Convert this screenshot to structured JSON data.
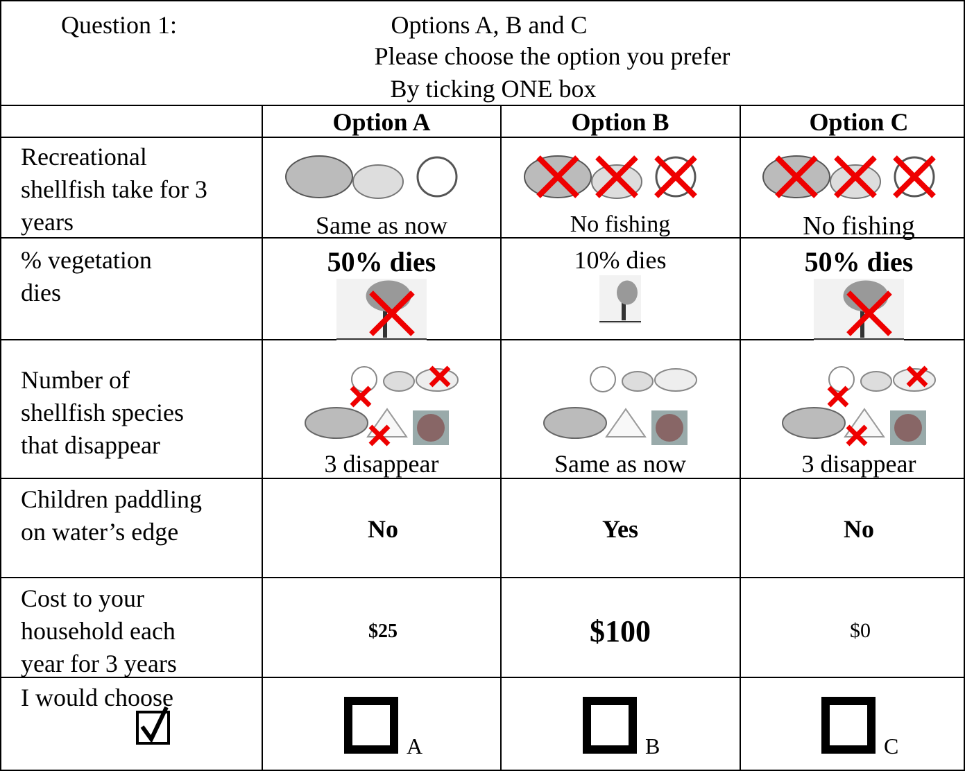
{
  "header": {
    "question": "Question 1:",
    "line1": "Options A, B and C",
    "line2": "Please choose the option you prefer",
    "line3": "By ticking ONE box"
  },
  "table": {
    "columns": [
      "Option A",
      "Option B",
      "Option C"
    ],
    "rows": [
      {
        "label": [
          "Recreational",
          "shellfish take for 3",
          "years"
        ],
        "cells": [
          "Same as now",
          "No fishing",
          "No fishing"
        ]
      },
      {
        "label": [
          "% vegetation",
          "dies"
        ],
        "cells": [
          "50% dies",
          "10% dies",
          "50% dies"
        ]
      },
      {
        "label": [
          "Number of",
          "shellfish species",
          "that disappear"
        ],
        "cells": [
          "3 disappear",
          "Same as now",
          "3 disappear"
        ]
      },
      {
        "label": [
          "Children paddling",
          "on water’s edge"
        ],
        "cells": [
          "No",
          "Yes",
          "No"
        ]
      },
      {
        "label": [
          "Cost to your",
          "household each",
          "year for 3 years"
        ],
        "cells": [
          "$25",
          "$100",
          "$0"
        ]
      },
      {
        "label": [
          "I would choose"
        ],
        "cells": [
          "A",
          "B",
          "C"
        ]
      }
    ]
  }
}
